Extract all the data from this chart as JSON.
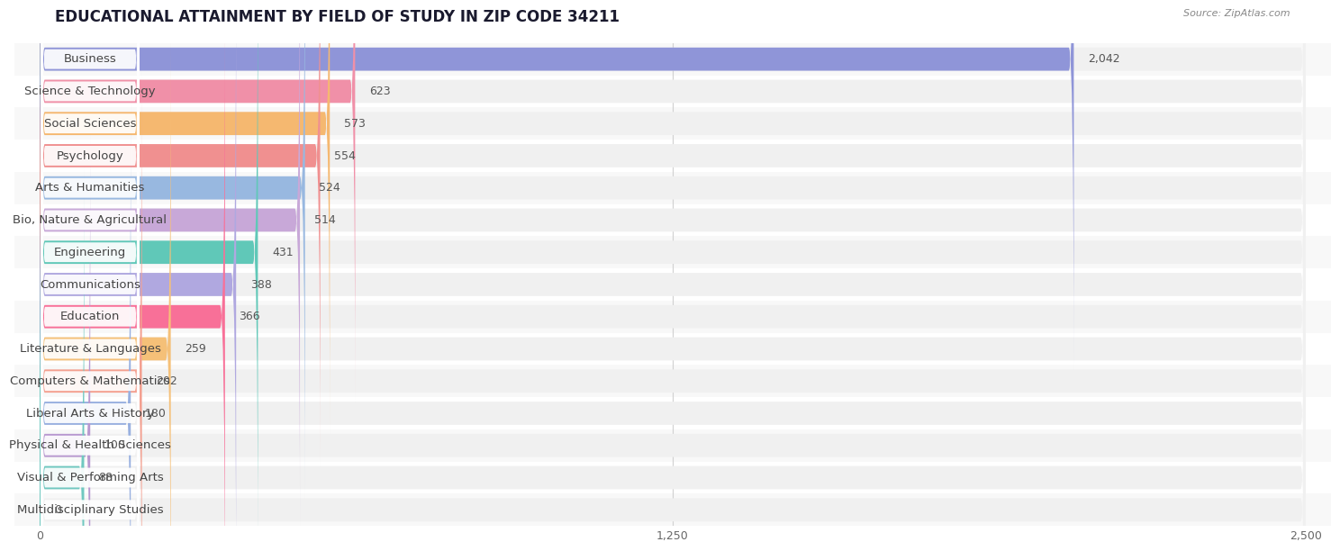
{
  "title": "EDUCATIONAL ATTAINMENT BY FIELD OF STUDY IN ZIP CODE 34211",
  "source": "Source: ZipAtlas.com",
  "categories": [
    "Business",
    "Science & Technology",
    "Social Sciences",
    "Psychology",
    "Arts & Humanities",
    "Bio, Nature & Agricultural",
    "Engineering",
    "Communications",
    "Education",
    "Literature & Languages",
    "Computers & Mathematics",
    "Liberal Arts & History",
    "Physical & Health Sciences",
    "Visual & Performing Arts",
    "Multidisciplinary Studies"
  ],
  "values": [
    2042,
    623,
    573,
    554,
    524,
    514,
    431,
    388,
    366,
    259,
    202,
    180,
    100,
    88,
    0
  ],
  "bar_colors": [
    "#8f95d8",
    "#f090a8",
    "#f5b870",
    "#f09090",
    "#98b8e0",
    "#c8a8d8",
    "#60c8b8",
    "#b0a8e0",
    "#f87098",
    "#f5c078",
    "#f4a090",
    "#98b0e0",
    "#b898d0",
    "#70c8c0",
    "#a8b0e0"
  ],
  "xlim": [
    0,
    2500
  ],
  "xtick_values": [
    0,
    1250,
    2500
  ],
  "xtick_labels": [
    "0",
    "1,250",
    "2,500"
  ],
  "background_color": "#ffffff",
  "bar_background_color": "#f0f0f0",
  "row_bg_colors": [
    "#f8f8f8",
    "#ffffff"
  ],
  "title_fontsize": 12,
  "label_fontsize": 9.5,
  "value_fontsize": 9
}
